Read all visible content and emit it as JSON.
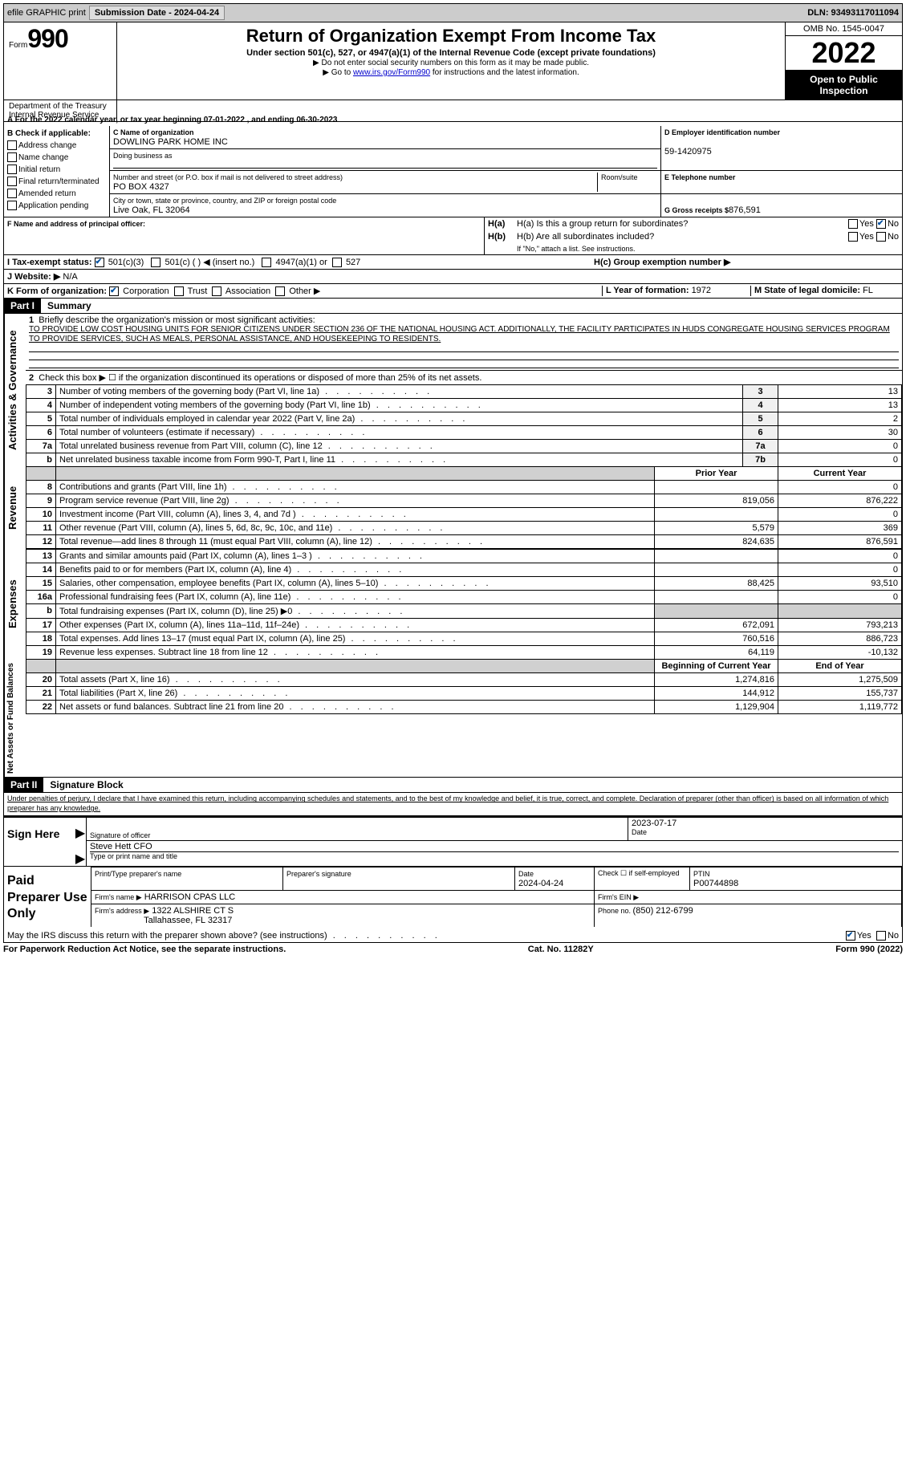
{
  "topbar": {
    "efile": "efile GRAPHIC print",
    "submission": "Submission Date - 2024-04-24",
    "dln": "DLN: 93493117011094"
  },
  "header": {
    "form_word": "Form",
    "form_num": "990",
    "title": "Return of Organization Exempt From Income Tax",
    "subtitle": "Under section 501(c), 527, or 4947(a)(1) of the Internal Revenue Code (except private foundations)",
    "note1": "▶ Do not enter social security numbers on this form as it may be made public.",
    "note2_pre": "▶ Go to ",
    "note2_link": "www.irs.gov/Form990",
    "note2_post": " for instructions and the latest information.",
    "dept1": "Department of the Treasury",
    "dept2": "Internal Revenue Service",
    "omb": "OMB No. 1545-0047",
    "year": "2022",
    "open1": "Open to Public",
    "open2": "Inspection"
  },
  "sectionA": {
    "line": "A For the 2022 calendar year, or tax year beginning 07-01-2022    , and ending 06-30-2023"
  },
  "sectionB": {
    "label": "B Check if applicable:",
    "opts": [
      "Address change",
      "Name change",
      "Initial return",
      "Final return/terminated",
      "Amended return",
      "Application pending"
    ],
    "c_label": "C Name of organization",
    "org_name": "DOWLING PARK HOME INC",
    "dba_label": "Doing business as",
    "street_label": "Number and street (or P.O. box if mail is not delivered to street address)",
    "room_label": "Room/suite",
    "street": "PO BOX 4327",
    "city_label": "City or town, state or province, country, and ZIP or foreign postal code",
    "city": "Live Oak, FL  32064",
    "d_label": "D Employer identification number",
    "ein": "59-1420975",
    "e_label": "E Telephone number",
    "g_label": "G Gross receipts $",
    "g_val": "876,591",
    "f_label": "F  Name and address of principal officer:",
    "ha_label": "H(a)  Is this a group return for subordinates?",
    "hb_label": "H(b)  Are all subordinates included?",
    "hb_note": "If \"No,\" attach a list. See instructions.",
    "hc_label": "H(c)  Group exemption number ▶",
    "yes": "Yes",
    "no": "No",
    "i_label": "I  Tax-exempt status:",
    "i_501c3": "501(c)(3)",
    "i_501c": "501(c) (  ) ◀ (insert no.)",
    "i_4947": "4947(a)(1) or",
    "i_527": "527",
    "j_label": "J  Website: ▶",
    "j_val": "N/A",
    "k_label": "K Form of organization:",
    "k_opts": [
      "Corporation",
      "Trust",
      "Association",
      "Other ▶"
    ],
    "l_label": "L Year of formation: ",
    "l_val": "1972",
    "m_label": "M State of legal domicile: ",
    "m_val": "FL"
  },
  "part1": {
    "header": "Part I",
    "title": "Summary",
    "tab_gov": "Activities & Governance",
    "tab_rev": "Revenue",
    "tab_exp": "Expenses",
    "tab_net": "Net Assets or Fund Balances",
    "q1": "Briefly describe the organization's mission or most significant activities:",
    "mission": "TO PROVIDE LOW COST HOUSING UNITS FOR SENIOR CITIZENS UNDER SECTION 236 OF THE NATIONAL HOUSING ACT. ADDITIONALLY, THE FACILITY PARTICIPATES IN HUDS CONGREGATE HOUSING SERVICES PROGRAM TO PROVIDE SERVICES, SUCH AS MEALS, PERSONAL ASSISTANCE, AND HOUSEKEEPING TO RESIDENTS.",
    "q2": "Check this box ▶ ☐  if the organization discontinued its operations or disposed of more than 25% of its net assets.",
    "rows_gov": [
      {
        "n": "3",
        "d": "Number of voting members of the governing body (Part VI, line 1a)",
        "b": "3",
        "v": "13"
      },
      {
        "n": "4",
        "d": "Number of independent voting members of the governing body (Part VI, line 1b)",
        "b": "4",
        "v": "13"
      },
      {
        "n": "5",
        "d": "Total number of individuals employed in calendar year 2022 (Part V, line 2a)",
        "b": "5",
        "v": "2"
      },
      {
        "n": "6",
        "d": "Total number of volunteers (estimate if necessary)",
        "b": "6",
        "v": "30"
      },
      {
        "n": "7a",
        "d": "Total unrelated business revenue from Part VIII, column (C), line 12",
        "b": "7a",
        "v": "0"
      },
      {
        "n": "b",
        "d": "Net unrelated business taxable income from Form 990-T, Part I, line 11",
        "b": "7b",
        "v": "0"
      }
    ],
    "col_prior": "Prior Year",
    "col_curr": "Current Year",
    "rows_rev": [
      {
        "n": "8",
        "d": "Contributions and grants (Part VIII, line 1h)",
        "p": "",
        "c": "0"
      },
      {
        "n": "9",
        "d": "Program service revenue (Part VIII, line 2g)",
        "p": "819,056",
        "c": "876,222"
      },
      {
        "n": "10",
        "d": "Investment income (Part VIII, column (A), lines 3, 4, and 7d )",
        "p": "",
        "c": "0"
      },
      {
        "n": "11",
        "d": "Other revenue (Part VIII, column (A), lines 5, 6d, 8c, 9c, 10c, and 11e)",
        "p": "5,579",
        "c": "369"
      },
      {
        "n": "12",
        "d": "Total revenue—add lines 8 through 11 (must equal Part VIII, column (A), line 12)",
        "p": "824,635",
        "c": "876,591"
      }
    ],
    "rows_exp": [
      {
        "n": "13",
        "d": "Grants and similar amounts paid (Part IX, column (A), lines 1–3 )",
        "p": "",
        "c": "0"
      },
      {
        "n": "14",
        "d": "Benefits paid to or for members (Part IX, column (A), line 4)",
        "p": "",
        "c": "0"
      },
      {
        "n": "15",
        "d": "Salaries, other compensation, employee benefits (Part IX, column (A), lines 5–10)",
        "p": "88,425",
        "c": "93,510"
      },
      {
        "n": "16a",
        "d": "Professional fundraising fees (Part IX, column (A), line 11e)",
        "p": "",
        "c": "0"
      },
      {
        "n": "b",
        "d": "Total fundraising expenses (Part IX, column (D), line 25) ▶0",
        "p": "SHADE",
        "c": "SHADE"
      },
      {
        "n": "17",
        "d": "Other expenses (Part IX, column (A), lines 11a–11d, 11f–24e)",
        "p": "672,091",
        "c": "793,213"
      },
      {
        "n": "18",
        "d": "Total expenses. Add lines 13–17 (must equal Part IX, column (A), line 25)",
        "p": "760,516",
        "c": "886,723"
      },
      {
        "n": "19",
        "d": "Revenue less expenses. Subtract line 18 from line 12",
        "p": "64,119",
        "c": "-10,132"
      }
    ],
    "col_beg": "Beginning of Current Year",
    "col_end": "End of Year",
    "rows_net": [
      {
        "n": "20",
        "d": "Total assets (Part X, line 16)",
        "p": "1,274,816",
        "c": "1,275,509"
      },
      {
        "n": "21",
        "d": "Total liabilities (Part X, line 26)",
        "p": "144,912",
        "c": "155,737"
      },
      {
        "n": "22",
        "d": "Net assets or fund balances. Subtract line 21 from line 20",
        "p": "1,129,904",
        "c": "1,119,772"
      }
    ]
  },
  "part2": {
    "header": "Part II",
    "title": "Signature Block",
    "jurat": "Under penalties of perjury, I declare that I have examined this return, including accompanying schedules and statements, and to the best of my knowledge and belief, it is true, correct, and complete. Declaration of preparer (other than officer) is based on all information of which preparer has any knowledge.",
    "sign_here": "Sign Here",
    "sig_officer": "Signature of officer",
    "date": "Date",
    "sig_date": "2023-07-17",
    "name_title": "Steve Hett CFO",
    "type_name": "Type or print name and title",
    "paid": "Paid Preparer Use Only",
    "prep_name_label": "Print/Type preparer's name",
    "prep_sig_label": "Preparer's signature",
    "prep_date_label": "Date",
    "prep_date": "2024-04-24",
    "check_if": "Check ☐ if self-employed",
    "ptin_label": "PTIN",
    "ptin": "P00744898",
    "firm_name_label": "Firm's name    ▶",
    "firm_name": "HARRISON CPAS LLC",
    "firm_ein_label": "Firm's EIN ▶",
    "firm_addr_label": "Firm's address ▶",
    "firm_addr1": "1322 ALSHIRE CT S",
    "firm_addr2": "Tallahassee, FL  32317",
    "phone_label": "Phone no. ",
    "phone": "(850) 212-6799",
    "may_irs": "May the IRS discuss this return with the preparer shown above? (see instructions)"
  },
  "footer": {
    "left": "For Paperwork Reduction Act Notice, see the separate instructions.",
    "mid": "Cat. No. 11282Y",
    "right_pre": "Form ",
    "right_form": "990",
    "right_post": " (2022)"
  }
}
